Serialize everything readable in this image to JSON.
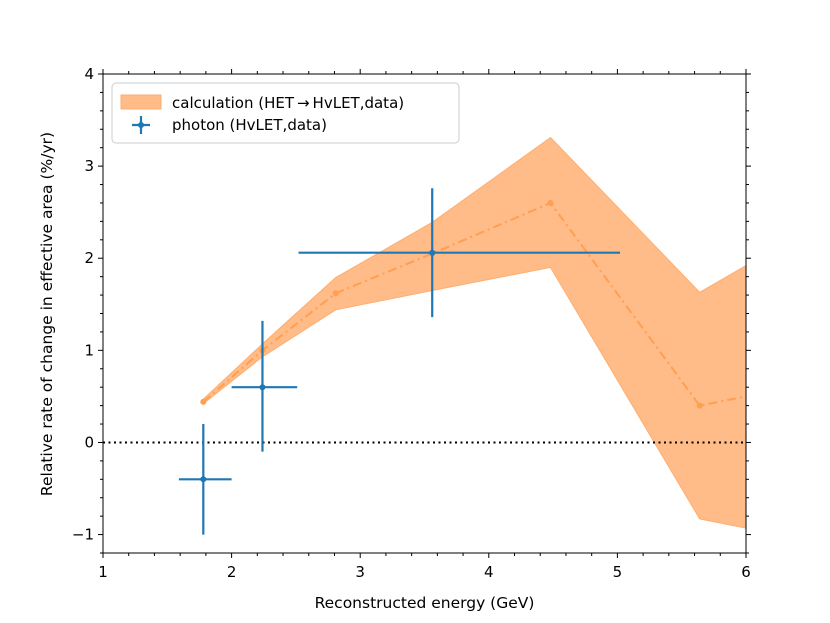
{
  "chart_data": {
    "type": "line",
    "title": "",
    "xlabel": "Reconstructed energy (GeV)",
    "ylabel": "Relative rate of change in effective area (%/yr)",
    "xlim": [
      1,
      6
    ],
    "ylim": [
      -1.2,
      4
    ],
    "xticks": [
      1,
      2,
      3,
      4,
      5,
      6
    ],
    "yticks": [
      -1,
      0,
      1,
      2,
      3,
      4
    ],
    "xtick_labels": [
      "1",
      "2",
      "3",
      "4",
      "5",
      "6"
    ],
    "ytick_labels": [
      "−1",
      "0",
      "1",
      "2",
      "3",
      "4"
    ],
    "grid": false,
    "legend_position": "top-left",
    "legend": [
      {
        "label": "calculation (HET → HvLET,data)",
        "style": "band",
        "color": "#ffbb88"
      },
      {
        "label": "photon (HvLET,data)",
        "style": "errorbar",
        "color": "#1f77b4"
      }
    ],
    "reference_line": {
      "y": 0,
      "style": "dotted",
      "color": "#000000"
    },
    "series": [
      {
        "name": "calculation (HET → HvLET,data)",
        "kind": "band_with_dashdot_line",
        "color": "#ff9f4f",
        "fill_color": "#ffbb88",
        "x": [
          1.78,
          2.24,
          2.81,
          3.56,
          4.48,
          5.64,
          6.0
        ],
        "y": [
          0.44,
          1.0,
          1.62,
          2.05,
          2.6,
          0.4,
          0.5
        ],
        "lower": [
          0.42,
          0.93,
          1.44,
          1.65,
          1.9,
          -0.83,
          -0.93
        ],
        "upper": [
          0.47,
          1.07,
          1.79,
          2.39,
          3.31,
          1.63,
          1.92
        ]
      },
      {
        "name": "photon (HvLET,data)",
        "kind": "errorbar",
        "color": "#1f77b4",
        "points": [
          {
            "x": 1.78,
            "y": -0.4,
            "xerr_low": 0.19,
            "xerr_high": 0.22,
            "yerr_low": 0.6,
            "yerr_high": 0.6
          },
          {
            "x": 2.24,
            "y": 0.6,
            "xerr_low": 0.24,
            "xerr_high": 0.27,
            "yerr_low": 0.7,
            "yerr_high": 0.72
          },
          {
            "x": 3.56,
            "y": 2.06,
            "xerr_low": 1.04,
            "xerr_high": 1.46,
            "yerr_low": 0.7,
            "yerr_high": 0.7
          }
        ]
      }
    ]
  }
}
